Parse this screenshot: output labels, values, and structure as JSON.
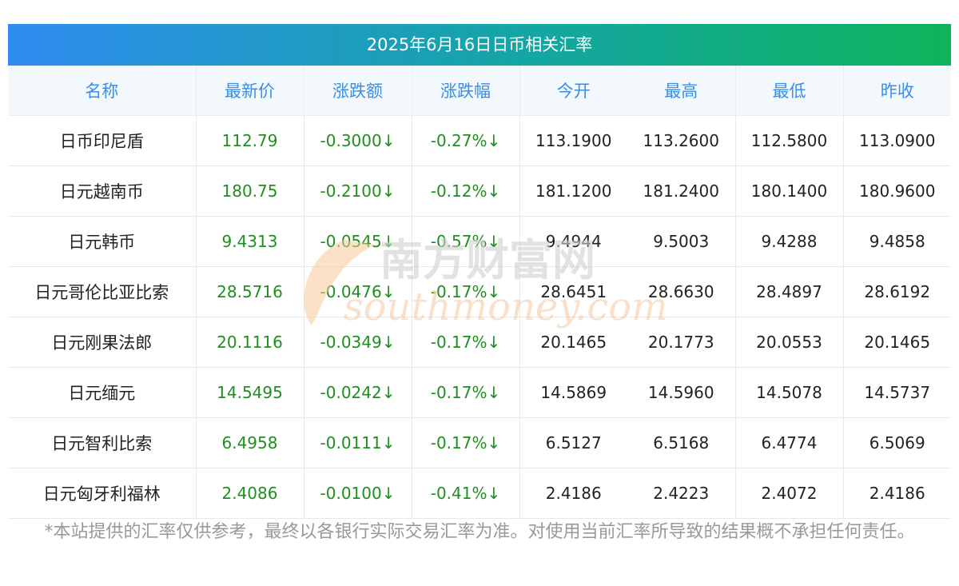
{
  "title": "2025年6月16日日币相关汇率",
  "headers": [
    "名称",
    "最新价",
    "涨跌额",
    "涨跌幅",
    "今开",
    "最高",
    "最低",
    "昨收"
  ],
  "rows": [
    {
      "name": "日币印尼盾",
      "last": "112.79",
      "change": "-0.3000↓",
      "pct": "-0.27%↓",
      "open": "113.1900",
      "high": "113.2600",
      "low": "112.5800",
      "prev": "113.0900"
    },
    {
      "name": "日元越南币",
      "last": "180.75",
      "change": "-0.2100↓",
      "pct": "-0.12%↓",
      "open": "181.1200",
      "high": "181.2400",
      "low": "180.1400",
      "prev": "180.9600"
    },
    {
      "name": "日元韩币",
      "last": "9.4313",
      "change": "-0.0545↓",
      "pct": "-0.57%↓",
      "open": "9.4944",
      "high": "9.5003",
      "low": "9.4288",
      "prev": "9.4858"
    },
    {
      "name": "日元哥伦比亚比索",
      "last": "28.5716",
      "change": "-0.0476↓",
      "pct": "-0.17%↓",
      "open": "28.6451",
      "high": "28.6630",
      "low": "28.4897",
      "prev": "28.6192"
    },
    {
      "name": "日元刚果法郎",
      "last": "20.1116",
      "change": "-0.0349↓",
      "pct": "-0.17%↓",
      "open": "20.1465",
      "high": "20.1773",
      "low": "20.0553",
      "prev": "20.1465"
    },
    {
      "name": "日元缅元",
      "last": "14.5495",
      "change": "-0.0242↓",
      "pct": "-0.17%↓",
      "open": "14.5869",
      "high": "14.5960",
      "low": "14.5078",
      "prev": "14.5737"
    },
    {
      "name": "日元智利比索",
      "last": "6.4958",
      "change": "-0.0111↓",
      "pct": "-0.17%↓",
      "open": "6.5127",
      "high": "6.5168",
      "low": "6.4774",
      "prev": "6.5069"
    },
    {
      "name": "日元匈牙利福林",
      "last": "2.4086",
      "change": "-0.0100↓",
      "pct": "-0.41%↓",
      "open": "2.4186",
      "high": "2.4223",
      "low": "2.4072",
      "prev": "2.4186"
    }
  ],
  "watermark": {
    "cn": "南方财富网",
    "en": "southmoney.com"
  },
  "note": "*本站提供的汇率仅供参考，最终以各银行实际交易汇率为准。对使用当前汇率所导致的结果概不承担任何责任。",
  "colors": {
    "header_text": "#3a8ee6",
    "green": "#1e8f1e",
    "gradient_start": "#2f8cf0",
    "gradient_end": "#0fb35a"
  }
}
